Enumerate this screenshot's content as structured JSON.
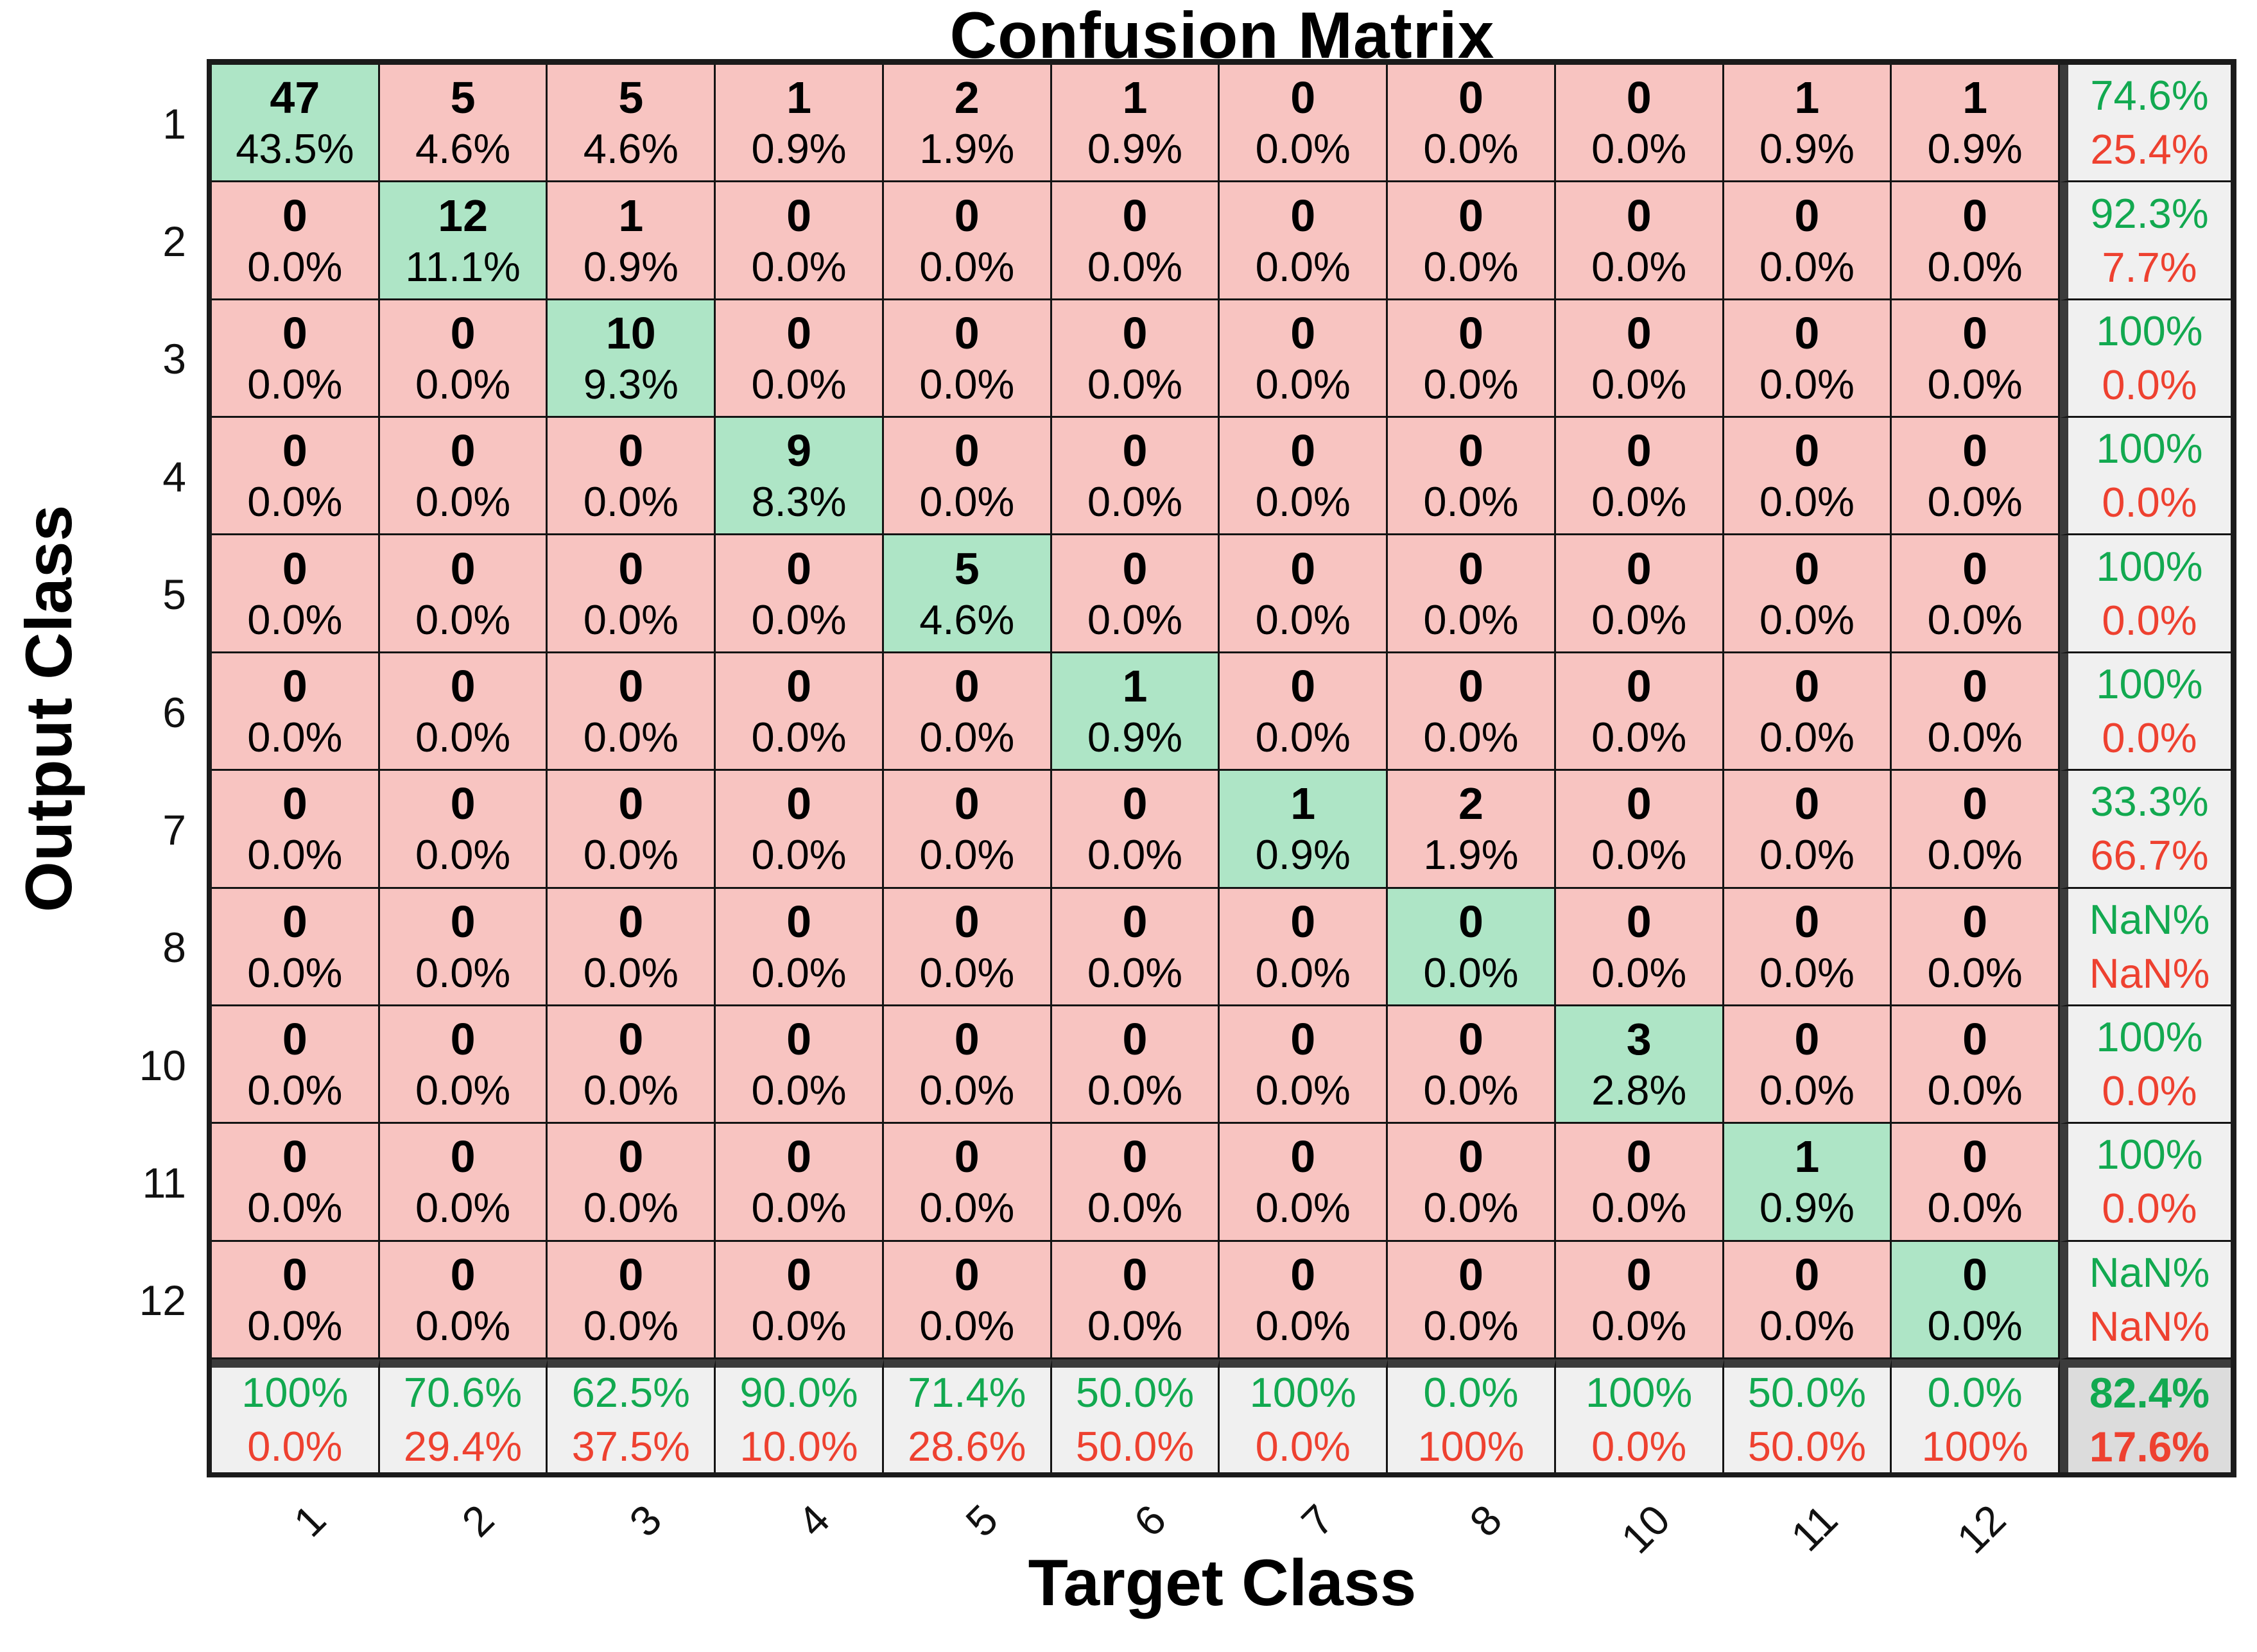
{
  "chart_data": {
    "type": "heatmap",
    "subtype": "confusion-matrix",
    "title": "Confusion Matrix",
    "xlabel": "Target Class",
    "ylabel": "Output Class",
    "classes": [
      "1",
      "2",
      "3",
      "4",
      "5",
      "6",
      "7",
      "8",
      "10",
      "11",
      "12"
    ],
    "counts": [
      [
        47,
        5,
        5,
        1,
        2,
        1,
        0,
        0,
        0,
        1,
        1
      ],
      [
        0,
        12,
        1,
        0,
        0,
        0,
        0,
        0,
        0,
        0,
        0
      ],
      [
        0,
        0,
        10,
        0,
        0,
        0,
        0,
        0,
        0,
        0,
        0
      ],
      [
        0,
        0,
        0,
        9,
        0,
        0,
        0,
        0,
        0,
        0,
        0
      ],
      [
        0,
        0,
        0,
        0,
        5,
        0,
        0,
        0,
        0,
        0,
        0
      ],
      [
        0,
        0,
        0,
        0,
        0,
        1,
        0,
        0,
        0,
        0,
        0
      ],
      [
        0,
        0,
        0,
        0,
        0,
        0,
        1,
        2,
        0,
        0,
        0
      ],
      [
        0,
        0,
        0,
        0,
        0,
        0,
        0,
        0,
        0,
        0,
        0
      ],
      [
        0,
        0,
        0,
        0,
        0,
        0,
        0,
        0,
        3,
        0,
        0
      ],
      [
        0,
        0,
        0,
        0,
        0,
        0,
        0,
        0,
        0,
        1,
        0
      ],
      [
        0,
        0,
        0,
        0,
        0,
        0,
        0,
        0,
        0,
        0,
        0
      ]
    ],
    "cell_percents": [
      [
        "43.5%",
        "4.6%",
        "4.6%",
        "0.9%",
        "1.9%",
        "0.9%",
        "0.0%",
        "0.0%",
        "0.0%",
        "0.9%",
        "0.9%"
      ],
      [
        "0.0%",
        "11.1%",
        "0.9%",
        "0.0%",
        "0.0%",
        "0.0%",
        "0.0%",
        "0.0%",
        "0.0%",
        "0.0%",
        "0.0%"
      ],
      [
        "0.0%",
        "0.0%",
        "9.3%",
        "0.0%",
        "0.0%",
        "0.0%",
        "0.0%",
        "0.0%",
        "0.0%",
        "0.0%",
        "0.0%"
      ],
      [
        "0.0%",
        "0.0%",
        "0.0%",
        "8.3%",
        "0.0%",
        "0.0%",
        "0.0%",
        "0.0%",
        "0.0%",
        "0.0%",
        "0.0%"
      ],
      [
        "0.0%",
        "0.0%",
        "0.0%",
        "0.0%",
        "4.6%",
        "0.0%",
        "0.0%",
        "0.0%",
        "0.0%",
        "0.0%",
        "0.0%"
      ],
      [
        "0.0%",
        "0.0%",
        "0.0%",
        "0.0%",
        "0.0%",
        "0.9%",
        "0.0%",
        "0.0%",
        "0.0%",
        "0.0%",
        "0.0%"
      ],
      [
        "0.0%",
        "0.0%",
        "0.0%",
        "0.0%",
        "0.0%",
        "0.0%",
        "0.9%",
        "1.9%",
        "0.0%",
        "0.0%",
        "0.0%"
      ],
      [
        "0.0%",
        "0.0%",
        "0.0%",
        "0.0%",
        "0.0%",
        "0.0%",
        "0.0%",
        "0.0%",
        "0.0%",
        "0.0%",
        "0.0%"
      ],
      [
        "0.0%",
        "0.0%",
        "0.0%",
        "0.0%",
        "0.0%",
        "0.0%",
        "0.0%",
        "0.0%",
        "2.8%",
        "0.0%",
        "0.0%"
      ],
      [
        "0.0%",
        "0.0%",
        "0.0%",
        "0.0%",
        "0.0%",
        "0.0%",
        "0.0%",
        "0.0%",
        "0.0%",
        "0.9%",
        "0.0%"
      ],
      [
        "0.0%",
        "0.0%",
        "0.0%",
        "0.0%",
        "0.0%",
        "0.0%",
        "0.0%",
        "0.0%",
        "0.0%",
        "0.0%",
        "0.0%"
      ]
    ],
    "row_summary": [
      {
        "top": "74.6%",
        "bottom": "25.4%"
      },
      {
        "top": "92.3%",
        "bottom": "7.7%"
      },
      {
        "top": "100%",
        "bottom": "0.0%"
      },
      {
        "top": "100%",
        "bottom": "0.0%"
      },
      {
        "top": "100%",
        "bottom": "0.0%"
      },
      {
        "top": "100%",
        "bottom": "0.0%"
      },
      {
        "top": "33.3%",
        "bottom": "66.7%"
      },
      {
        "top": "NaN%",
        "bottom": "NaN%"
      },
      {
        "top": "100%",
        "bottom": "0.0%"
      },
      {
        "top": "100%",
        "bottom": "0.0%"
      },
      {
        "top": "NaN%",
        "bottom": "NaN%"
      }
    ],
    "col_summary": [
      {
        "top": "100%",
        "bottom": "0.0%"
      },
      {
        "top": "70.6%",
        "bottom": "29.4%"
      },
      {
        "top": "62.5%",
        "bottom": "37.5%"
      },
      {
        "top": "90.0%",
        "bottom": "10.0%"
      },
      {
        "top": "71.4%",
        "bottom": "28.6%"
      },
      {
        "top": "50.0%",
        "bottom": "50.0%"
      },
      {
        "top": "100%",
        "bottom": "0.0%"
      },
      {
        "top": "0.0%",
        "bottom": "100%"
      },
      {
        "top": "100%",
        "bottom": "0.0%"
      },
      {
        "top": "50.0%",
        "bottom": "50.0%"
      },
      {
        "top": "0.0%",
        "bottom": "100%"
      }
    ],
    "total_summary": {
      "top": "82.4%",
      "bottom": "17.6%"
    },
    "legend": "none",
    "grid": "on",
    "colors": {
      "diagonal_cell": "#AEE5C6",
      "offdiagonal_cell": "#F8C4C1",
      "summary_cell": "#F0F0F0",
      "corner_cell": "#DCDCDC",
      "positive_text": "#12A950",
      "negative_text": "#EE4130",
      "thin_border": "#141414",
      "thick_border": "#3B3B3B"
    }
  }
}
